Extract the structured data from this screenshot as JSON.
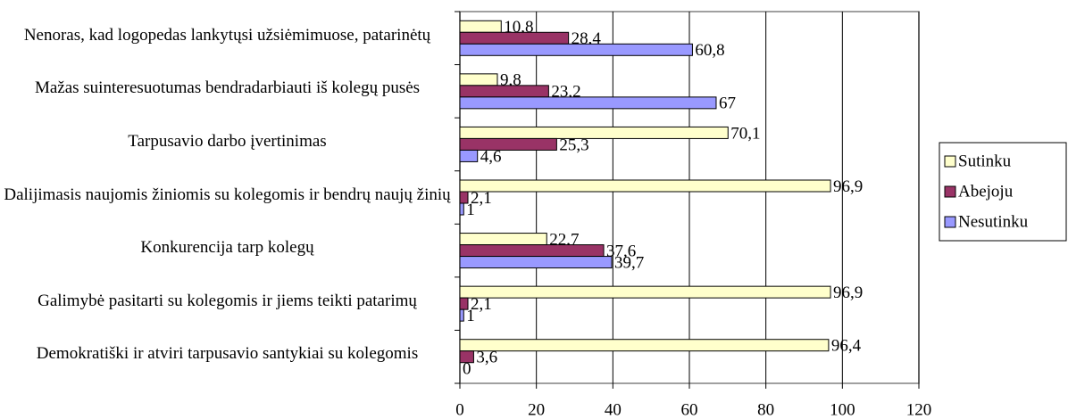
{
  "chart_data": {
    "type": "barh",
    "categories": [
      "Nenoras, kad logopedas lankytųsi užsiėmimuose, patarinėtų",
      "Mažas suinteresuotumas bendradarbiauti iš kolegų pusės",
      "Tarpusavio darbo įvertinimas",
      "Dalijimasis naujomis žiniomis su kolegomis ir bendrų naujų žinių",
      "Konkurencija tarp kolegų",
      "Galimybė pasitarti su kolegomis ir jiems teikti patarimų",
      "Demokratiški ir atviri tarpusavio santykiai su kolegomis"
    ],
    "series": [
      {
        "name": "Sutinku",
        "color": "#ffffcc",
        "values": [
          10.8,
          9.8,
          70.1,
          96.9,
          22.7,
          96.9,
          96.4
        ],
        "value_labels": [
          "10,8",
          "9,8",
          "70,1",
          "96,9",
          "22,7",
          "96,9",
          "96,4"
        ]
      },
      {
        "name": "Abejoju",
        "color": "#993366",
        "values": [
          28.4,
          23.2,
          25.3,
          2.1,
          37.6,
          2.1,
          3.6
        ],
        "value_labels": [
          "28,4",
          "23,2",
          "25,3",
          "2,1",
          "37,6",
          "2,1",
          "3,6"
        ]
      },
      {
        "name": "Nesutinku",
        "color": "#9999ff",
        "values": [
          60.8,
          67,
          4.6,
          1,
          39.7,
          1,
          0
        ],
        "value_labels": [
          "60,8",
          "67",
          "4,6",
          "1",
          "39,7",
          "1",
          "0"
        ]
      }
    ],
    "xlim": [
      0,
      120
    ],
    "xticks": [
      0,
      20,
      40,
      60,
      80,
      100,
      120
    ],
    "grid": true,
    "legend": "right"
  }
}
